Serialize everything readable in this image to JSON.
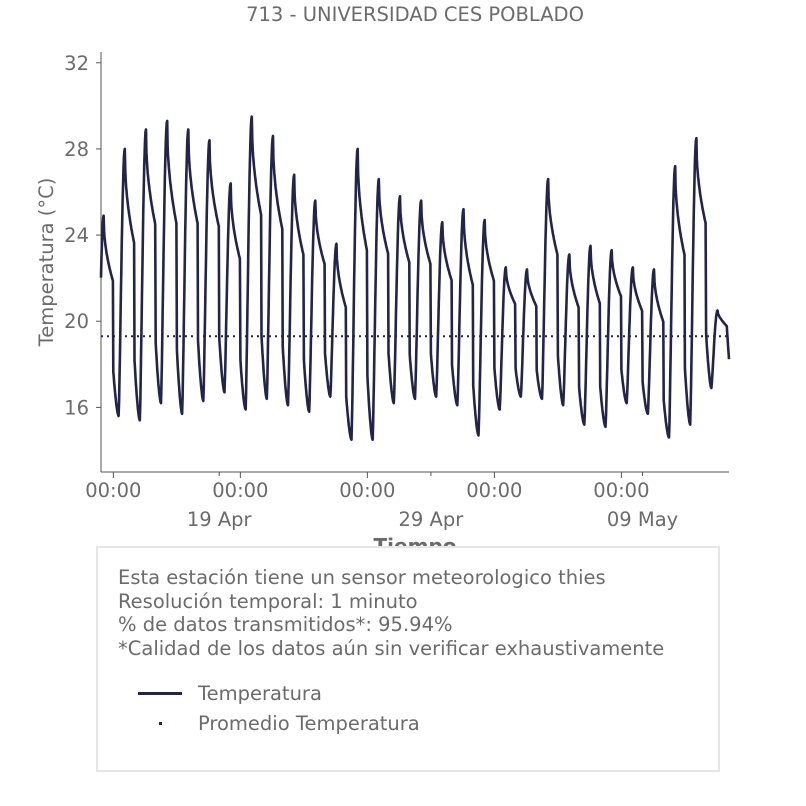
{
  "chart_data": {
    "type": "line",
    "title": "713 - UNIVERSIDAD CES POBLADO",
    "xlabel": "Tiempo",
    "ylabel": "Temperatura (°C)",
    "ylim": [
      13,
      32.5
    ],
    "yticks": [
      16,
      20,
      24,
      28,
      32
    ],
    "x_start": "2025-04-13T10:00",
    "x_end": "2025-05-13T02:00",
    "x_major_ticks": [
      {
        "x": "2025-04-14T00:00",
        "label": "00:00"
      },
      {
        "x": "2025-04-20T00:00",
        "label": "00:00"
      },
      {
        "x": "2025-04-26T00:00",
        "label": "00:00"
      },
      {
        "x": "2025-05-02T00:00",
        "label": "00:00"
      },
      {
        "x": "2025-05-08T00:00",
        "label": "00:00"
      }
    ],
    "x_date_ticks": [
      {
        "x": "2025-04-19T00:00",
        "label": "19 Apr"
      },
      {
        "x": "2025-04-29T00:00",
        "label": "29 Apr"
      },
      {
        "x": "2025-05-09T00:00",
        "label": "09 May"
      }
    ],
    "grid": false,
    "series": [
      {
        "name": "Temperatura",
        "color": "#22244a",
        "style": "solid",
        "daily_min": [
          14.4,
          15.6,
          15.4,
          16.2,
          15.7,
          16.3,
          16.7,
          15.9,
          16.4,
          16.1,
          15.8,
          16.5,
          14.5,
          14.5,
          16.2,
          16.4,
          16.5,
          16.1,
          14.7,
          15.9,
          16.5,
          16.4,
          16.1,
          15.2,
          15.1,
          16.2,
          15.7,
          14.6,
          15.2,
          16.9
        ],
        "daily_max": [
          24.9,
          28.0,
          28.9,
          29.3,
          28.9,
          28.4,
          26.4,
          29.5,
          28.6,
          26.8,
          25.6,
          23.6,
          28.0,
          26.6,
          25.8,
          25.6,
          24.6,
          25.2,
          24.7,
          22.5,
          22.4,
          26.6,
          23.1,
          23.5,
          23.3,
          22.5,
          22.4,
          27.2,
          28.5,
          20.5
        ]
      },
      {
        "name": "Promedio Temperatura",
        "color": "#22244a",
        "style": "dotted",
        "value": 19.3
      }
    ]
  },
  "info": {
    "line1": "Esta estación tiene un sensor meteorologico thies",
    "line2": "Resolución temporal: 1 minuto",
    "line3": "% de datos transmitidos*: 95.94%",
    "line4": "*Calidad de los datos aún sin verificar exhaustivamente"
  },
  "legend": {
    "temp_label": "Temperatura",
    "avg_label": "Promedio Temperatura"
  }
}
